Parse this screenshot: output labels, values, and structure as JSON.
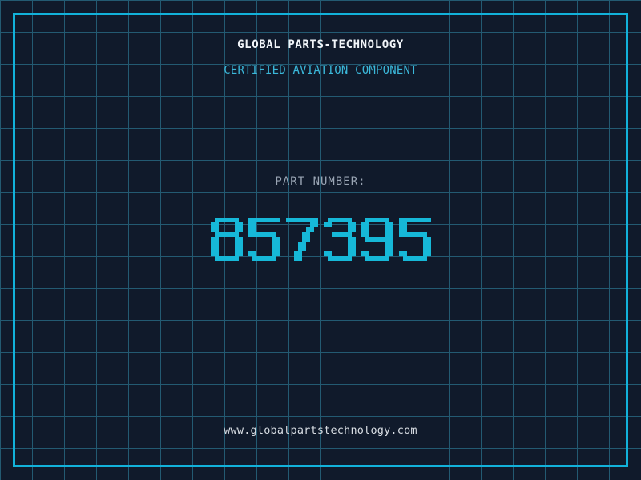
{
  "header": {
    "title": "GLOBAL PARTS-TECHNOLOGY",
    "subtitle": "CERTIFIED AVIATION COMPONENT"
  },
  "part": {
    "label": "PART NUMBER:",
    "number": "857395"
  },
  "footer": {
    "url": "www.globalpartstechnology.com"
  },
  "colors": {
    "background": "#101a2b",
    "grid_line": "#235a72",
    "frame": "#12b2da",
    "digit": "#16b8d8",
    "title": "#f0f4f8",
    "subtitle": "#3bb8da",
    "label": "#9aa5b4",
    "url": "#d8dde3"
  }
}
